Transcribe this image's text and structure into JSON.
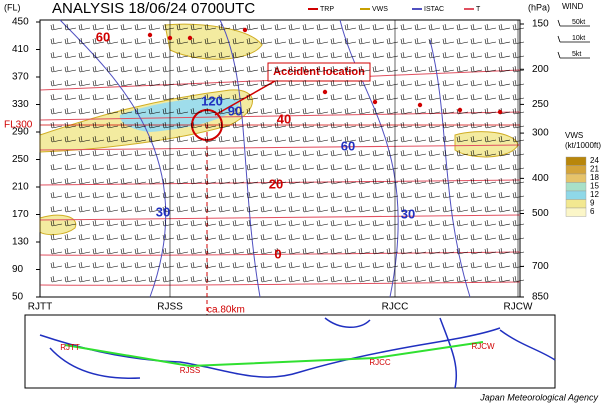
{
  "header": {
    "title": "ANALYSIS 18/06/24 0700UTC"
  },
  "legend": [
    {
      "label": "TRP",
      "color": "#d00000"
    },
    {
      "label": "VWS",
      "color": "#c8a000"
    },
    {
      "label": "ISTAC",
      "color": "#5050c0"
    },
    {
      "label": "T",
      "color": "#e05060"
    }
  ],
  "wind_legend": {
    "title": "WIND",
    "items": [
      "50kt",
      "10kt",
      "5kt"
    ]
  },
  "axes": {
    "left_label": "(FL)",
    "left_ticks": [
      450,
      410,
      370,
      330,
      290,
      250,
      210,
      170,
      130,
      90,
      50
    ],
    "right_label": "(hPa)",
    "right_ticks": [
      150,
      200,
      250,
      300,
      400,
      500,
      700,
      850
    ]
  },
  "stations": [
    "RJTT",
    "RJSS",
    "RJCC",
    "RJCW"
  ],
  "distance_label": "ca.80km",
  "annotations": {
    "accident": "Accident location",
    "flight_level": "FL300"
  },
  "contour_labels": [
    "60",
    "120",
    "90",
    "40",
    "60",
    "20",
    "30",
    "30",
    "0"
  ],
  "vws_scale": {
    "title": "VWS",
    "unit": "(kt/1000ft)",
    "levels": [
      "24",
      "21",
      "18",
      "15",
      "12",
      "9",
      "6"
    ],
    "colors": [
      "#b8860b",
      "#d4a43a",
      "#e6c36a",
      "#a8e0c8",
      "#8fd8e8",
      "#f2e890",
      "#fbf6c8"
    ]
  },
  "map_labels": [
    "RJTT",
    "RJSS",
    "RJCC",
    "RJCW"
  ],
  "footer": "Japan Meteorological Agency"
}
